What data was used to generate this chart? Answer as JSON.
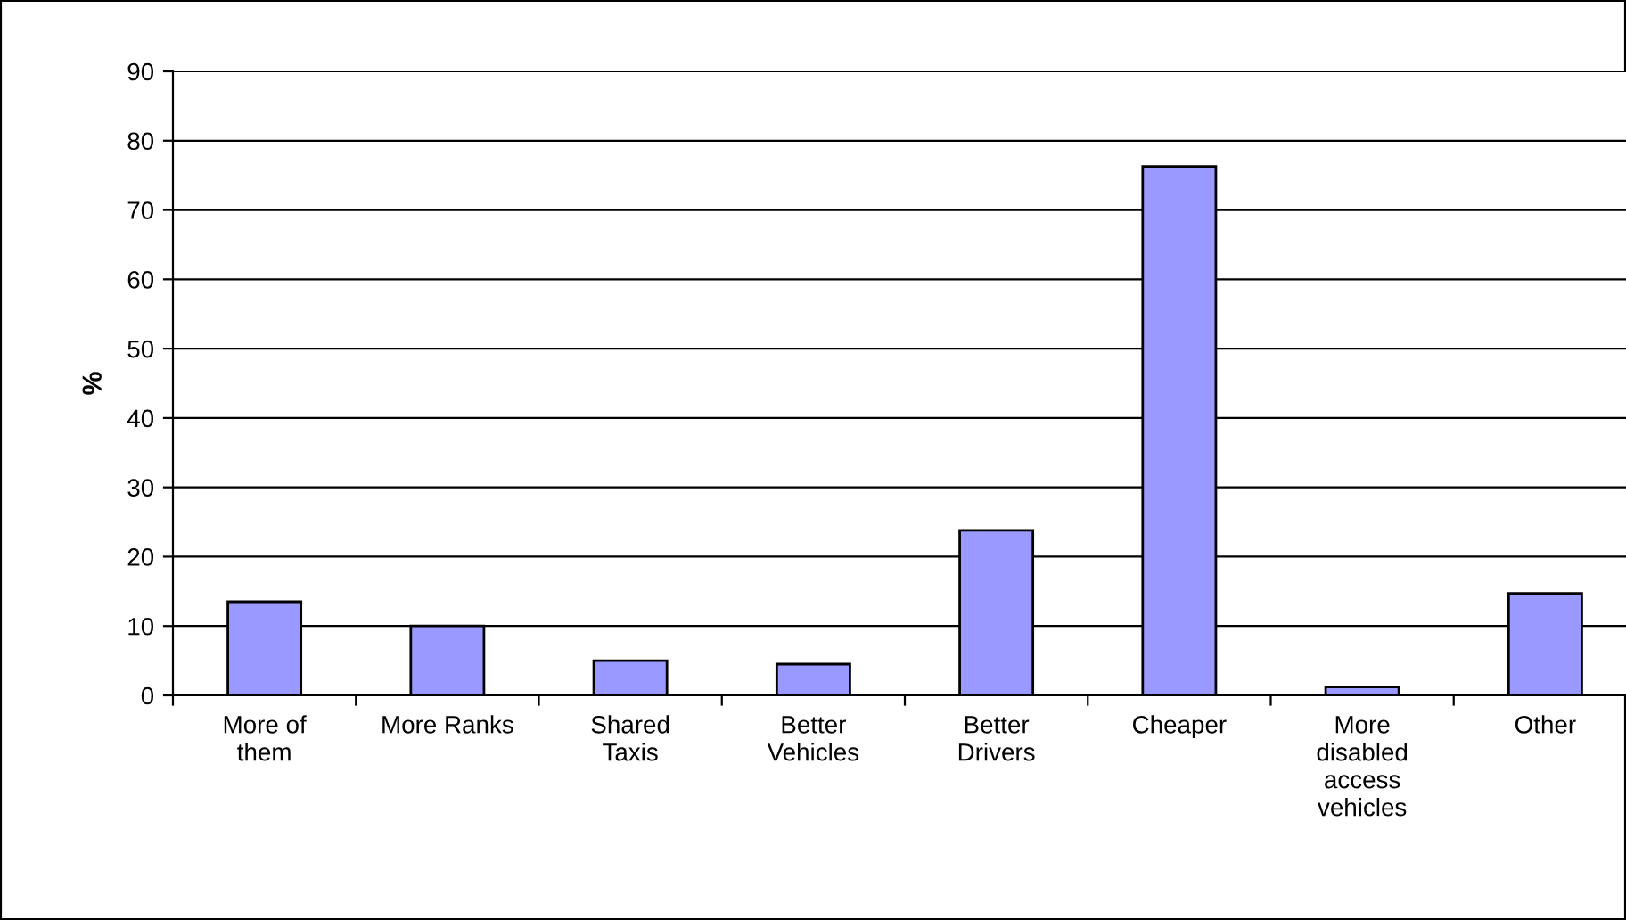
{
  "chart_data": {
    "type": "bar",
    "ylabel": "%",
    "categories": [
      "More of\nthem",
      "More Ranks",
      "Shared\nTaxis",
      "Better\nVehicles",
      "Better\nDrivers",
      "Cheaper",
      "More\ndisabled\naccess\nvehicles",
      "Other"
    ],
    "values": [
      13.5,
      10,
      5,
      4.5,
      23.8,
      76.3,
      1.2,
      14.7
    ],
    "color": "#9999ff",
    "ylim": [
      0,
      90
    ],
    "yticks": [
      0,
      10,
      20,
      30,
      40,
      50,
      60,
      70,
      80,
      90
    ],
    "grid": "y",
    "legend": false
  }
}
